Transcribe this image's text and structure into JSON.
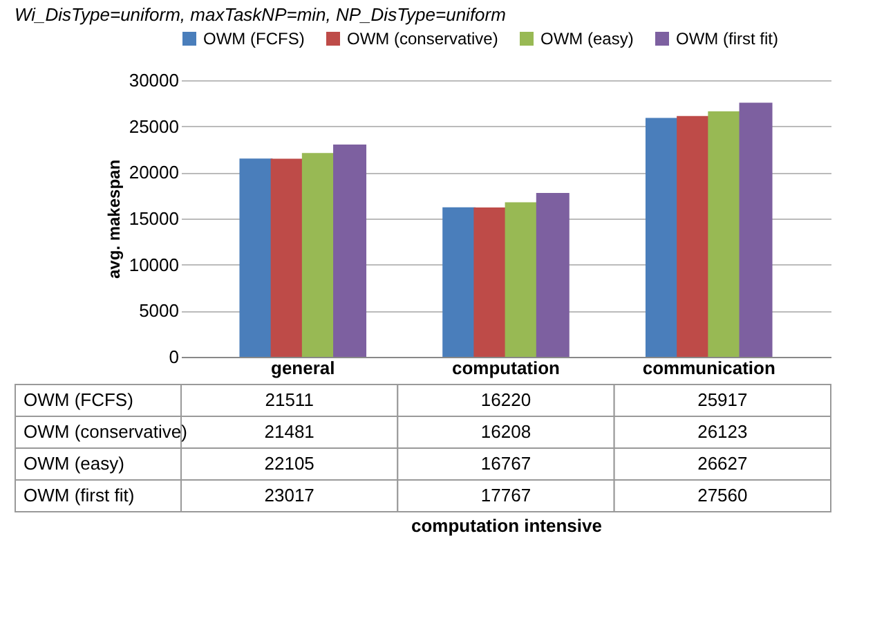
{
  "chart_data": {
    "type": "bar",
    "title": "Wi_DisType=uniform, maxTaskNP=min, NP_DisType=uniform",
    "ylabel": "avg. makespan",
    "annotations": [
      "computation intensive"
    ],
    "categories": [
      "general",
      "computation",
      "communication"
    ],
    "series": [
      {
        "name": "OWM (FCFS)",
        "color": "#4a7ebb",
        "values": [
          21511,
          16220,
          25917
        ]
      },
      {
        "name": "OWM (conservative)",
        "color": "#be4b48",
        "values": [
          21481,
          16208,
          26123
        ]
      },
      {
        "name": "OWM (easy)",
        "color": "#98b954",
        "values": [
          22105,
          16767,
          26627
        ]
      },
      {
        "name": "OWM (first fit)",
        "color": "#7d60a0",
        "values": [
          23017,
          17767,
          27560
        ]
      }
    ],
    "ylim": [
      0,
      30000
    ],
    "yticks": [
      0,
      5000,
      10000,
      15000,
      20000,
      25000,
      30000
    ],
    "grid": "y",
    "legend": "top",
    "data_labels": true
  }
}
